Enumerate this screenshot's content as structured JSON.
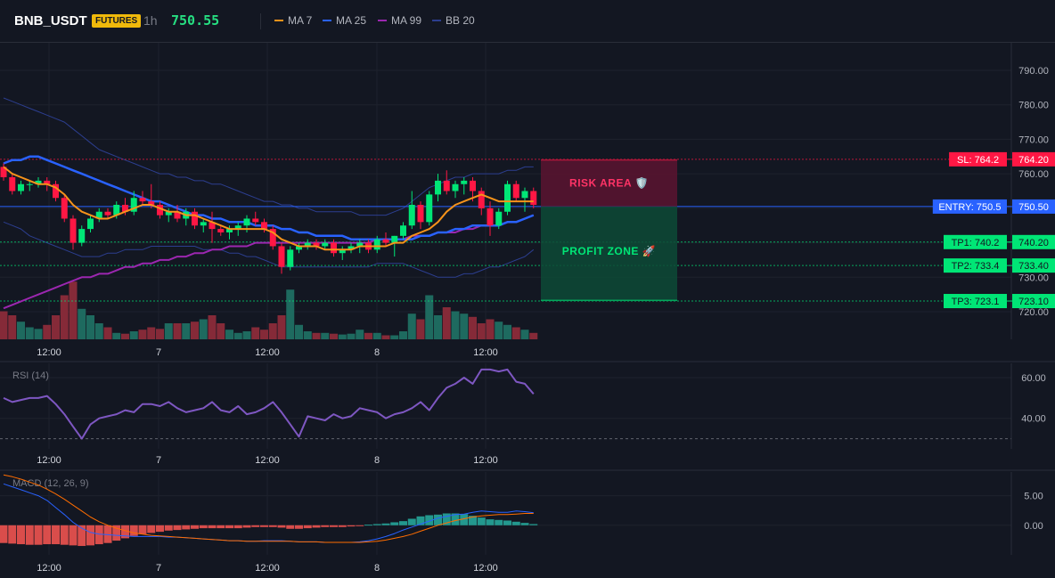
{
  "header": {
    "symbol": "BNB_USDT",
    "badge": "FUTURES",
    "timeframe": "1h",
    "price": "750.55",
    "legend": [
      {
        "label": "MA 7",
        "color": "#f7931a"
      },
      {
        "label": "MA 25",
        "color": "#2962ff"
      },
      {
        "label": "MA 99",
        "color": "#9c27b0"
      },
      {
        "label": "BB 20",
        "color": "#2c3e8f"
      }
    ]
  },
  "colors": {
    "up": "#26a69a",
    "down": "#ef5350",
    "candle_up": "#00e676",
    "candle_down": "#ff1744",
    "entry": "#2962ff",
    "sl": "#ff1744",
    "tp": "#00e676"
  },
  "x_ticks": [
    "12:00",
    "7",
    "12:00",
    "8",
    "12:00"
  ],
  "chart_data": [
    {
      "type": "candlestick",
      "ylim": [
        712,
        798
      ],
      "y_ticks": [
        "790.00",
        "780.00",
        "770.00",
        "760.00",
        "750.00",
        "740.00",
        "730.00",
        "720.00"
      ],
      "y_tick_values": [
        790,
        780,
        770,
        760,
        750,
        740,
        730,
        720
      ],
      "candles": [
        [
          762,
          763,
          758,
          759
        ],
        [
          759,
          760,
          754,
          755
        ],
        [
          755,
          758,
          754,
          757
        ],
        [
          757,
          758,
          755,
          757
        ],
        [
          757,
          759,
          756,
          758
        ],
        [
          758,
          759,
          755,
          757
        ],
        [
          757,
          758,
          752,
          753
        ],
        [
          753,
          754,
          746,
          747
        ],
        [
          747,
          748,
          738,
          740
        ],
        [
          740,
          745,
          739,
          744
        ],
        [
          744,
          748,
          743,
          747
        ],
        [
          747,
          750,
          746,
          749
        ],
        [
          749,
          750,
          747,
          748
        ],
        [
          748,
          752,
          747,
          751
        ],
        [
          751,
          753,
          748,
          749
        ],
        [
          749,
          755,
          748,
          753
        ],
        [
          753,
          755,
          751,
          752
        ],
        [
          752,
          757,
          750,
          751
        ],
        [
          751,
          752,
          747,
          748
        ],
        [
          748,
          750,
          746,
          749
        ],
        [
          749,
          751,
          746,
          747
        ],
        [
          747,
          750,
          745,
          749
        ],
        [
          749,
          750,
          744,
          745
        ],
        [
          745,
          747,
          743,
          746
        ],
        [
          746,
          749,
          740,
          744
        ],
        [
          744,
          745,
          742,
          743
        ],
        [
          743,
          745,
          741,
          744
        ],
        [
          744,
          746,
          742,
          745
        ],
        [
          745,
          748,
          743,
          747
        ],
        [
          747,
          749,
          745,
          746
        ],
        [
          746,
          747,
          743,
          744
        ],
        [
          744,
          745,
          738,
          739
        ],
        [
          739,
          740,
          731,
          733
        ],
        [
          733,
          739,
          732,
          738
        ],
        [
          738,
          740,
          737,
          739
        ],
        [
          739,
          741,
          738,
          740
        ],
        [
          740,
          741,
          738,
          739
        ],
        [
          739,
          741,
          738,
          740
        ],
        [
          740,
          741,
          736,
          737
        ],
        [
          737,
          739,
          735,
          738
        ],
        [
          738,
          740,
          737,
          739
        ],
        [
          739,
          741,
          737,
          740
        ],
        [
          740,
          741,
          737,
          738
        ],
        [
          738,
          742,
          737,
          741
        ],
        [
          741,
          743,
          739,
          740
        ],
        [
          740,
          742,
          736,
          742
        ],
        [
          742,
          746,
          741,
          745
        ],
        [
          745,
          755,
          744,
          751
        ],
        [
          751,
          752,
          744,
          746
        ],
        [
          746,
          755,
          745,
          754
        ],
        [
          754,
          760,
          752,
          758
        ],
        [
          758,
          761,
          754,
          755
        ],
        [
          755,
          758,
          753,
          757
        ],
        [
          757,
          759,
          754,
          758
        ],
        [
          758,
          759,
          752,
          755
        ],
        [
          755,
          756,
          748,
          750
        ],
        [
          750,
          752,
          742,
          745
        ],
        [
          745,
          750,
          744,
          749
        ],
        [
          749,
          758,
          748,
          757
        ],
        [
          757,
          758,
          752,
          753
        ],
        [
          753,
          756,
          749,
          755
        ],
        [
          755,
          756,
          750,
          751
        ]
      ],
      "ma7": [
        762,
        760,
        759,
        758,
        757,
        757,
        756,
        754,
        751,
        749,
        748,
        747,
        747,
        748,
        749,
        750,
        751,
        751,
        750,
        749,
        749,
        748,
        748,
        747,
        746,
        745,
        744,
        744,
        744,
        744,
        744,
        743,
        741,
        740,
        739,
        739,
        739,
        738,
        738,
        738,
        738,
        739,
        739,
        739,
        739,
        740,
        740,
        742,
        743,
        744,
        746,
        749,
        751,
        752,
        753,
        754,
        753,
        752,
        752,
        752,
        752,
        752
      ],
      "ma25": [
        763,
        764,
        764,
        765,
        765,
        764,
        763,
        762,
        761,
        760,
        759,
        758,
        757,
        756,
        755,
        754,
        753,
        752,
        752,
        751,
        750,
        749,
        748,
        748,
        747,
        747,
        746,
        746,
        746,
        745,
        745,
        745,
        744,
        744,
        743,
        743,
        742,
        742,
        742,
        742,
        741,
        741,
        741,
        741,
        741,
        741,
        741,
        741,
        742,
        742,
        743,
        743,
        744,
        744,
        745,
        745,
        745,
        745,
        746,
        746,
        747,
        748
      ],
      "ma99": [
        721,
        722,
        723,
        724,
        725,
        726,
        727,
        728,
        729,
        730,
        730,
        731,
        731,
        732,
        733,
        733,
        734,
        734,
        735,
        735,
        736,
        736,
        737,
        737,
        738,
        738,
        739,
        739,
        739,
        740,
        740,
        740,
        740,
        740,
        740,
        740,
        740,
        740,
        740,
        740,
        740,
        740,
        740,
        741,
        741,
        741,
        741,
        742,
        742,
        742,
        743,
        743,
        743,
        744,
        744,
        745,
        745,
        745,
        746,
        746,
        747,
        748
      ],
      "bb_upper": [
        782,
        781,
        780,
        779,
        778,
        777,
        776,
        775,
        773,
        771,
        769,
        767,
        766,
        765,
        764,
        763,
        762,
        761,
        760,
        760,
        759,
        759,
        758,
        758,
        757,
        757,
        756,
        755,
        754,
        753,
        752,
        752,
        751,
        751,
        750,
        750,
        749,
        749,
        749,
        749,
        749,
        748,
        748,
        748,
        748,
        749,
        750,
        752,
        754,
        756,
        757,
        758,
        759,
        759,
        760,
        760,
        760,
        760,
        761,
        761,
        762,
        762
      ],
      "bb_lower": [
        746,
        745,
        744,
        742,
        741,
        740,
        739,
        738,
        737,
        736,
        736,
        736,
        737,
        737,
        738,
        738,
        738,
        739,
        739,
        739,
        739,
        739,
        739,
        738,
        738,
        738,
        737,
        737,
        736,
        736,
        735,
        734,
        733,
        733,
        733,
        733,
        733,
        733,
        733,
        733,
        733,
        733,
        733,
        734,
        734,
        734,
        734,
        733,
        732,
        731,
        730,
        730,
        730,
        731,
        731,
        732,
        733,
        733,
        734,
        735,
        736,
        738
      ],
      "volume": [
        0.35,
        0.3,
        0.22,
        0.15,
        0.13,
        0.18,
        0.3,
        0.55,
        0.72,
        0.38,
        0.3,
        0.2,
        0.15,
        0.08,
        0.07,
        0.1,
        0.12,
        0.15,
        0.13,
        0.2,
        0.2,
        0.2,
        0.22,
        0.25,
        0.3,
        0.2,
        0.12,
        0.08,
        0.1,
        0.15,
        0.12,
        0.2,
        0.3,
        0.62,
        0.18,
        0.1,
        0.08,
        0.08,
        0.07,
        0.06,
        0.07,
        0.12,
        0.08,
        0.08,
        0.05,
        0.05,
        0.1,
        0.32,
        0.25,
        0.55,
        0.3,
        0.4,
        0.35,
        0.32,
        0.28,
        0.2,
        0.25,
        0.22,
        0.18,
        0.15,
        0.12,
        0.08
      ],
      "levels": [
        {
          "label": "SL: 764.2",
          "value_text": "764.20",
          "value": 764.2,
          "kind": "sl"
        },
        {
          "label": "ENTRY: 750.5",
          "value_text": "750.50",
          "value": 750.5,
          "kind": "entry"
        },
        {
          "label": "TP1: 740.2",
          "value_text": "740.20",
          "value": 740.2,
          "kind": "tp"
        },
        {
          "label": "TP2: 733.4",
          "value_text": "733.40",
          "value": 733.4,
          "kind": "tp"
        },
        {
          "label": "TP3: 723.1",
          "value_text": "723.10",
          "value": 723.1,
          "kind": "tp"
        }
      ],
      "zones": {
        "risk_label": "RISK AREA 🛡️",
        "profit_label": "PROFIT ZONE 🚀"
      }
    },
    {
      "type": "line",
      "title": "RSI (14)",
      "ylim": [
        25,
        67
      ],
      "y_ticks": [
        "60.00",
        "40.00"
      ],
      "y_tick_values": [
        60,
        40
      ],
      "dashed_level": 30,
      "values": [
        50,
        49,
        50,
        50,
        51,
        52,
        50,
        46,
        40,
        30,
        37,
        40,
        41,
        42,
        44,
        43,
        47,
        46,
        47,
        48,
        46,
        50,
        51,
        49,
        45,
        43,
        46,
        46,
        48,
        47,
        43,
        41,
        45,
        42,
        44,
        45,
        40,
        48,
        49,
        44,
        42,
        45,
        49,
        47,
        42,
        44,
        45,
        44,
        43,
        42,
        41,
        43,
        44,
        46,
        42,
        45,
        47,
        51,
        55,
        52,
        54,
        52
      ],
      "rsi_overwrite": [
        50,
        48,
        49,
        50,
        50,
        51,
        47,
        42,
        36,
        30,
        37,
        40,
        41,
        42,
        44,
        43,
        47,
        47,
        46,
        48,
        45,
        43,
        44,
        45,
        48,
        44,
        43,
        46,
        42,
        43,
        45,
        48,
        43,
        37,
        31,
        41,
        40,
        39,
        42,
        40,
        41,
        45,
        44,
        43,
        40,
        42,
        43,
        45,
        48,
        44,
        50,
        55,
        57,
        60,
        57,
        64,
        64,
        63,
        64,
        58,
        57,
        52
      ]
    },
    {
      "type": "bar",
      "title": "MACD (12, 26, 9)",
      "ylim": [
        -5,
        9
      ],
      "y_ticks": [
        "5.00",
        "0.00"
      ],
      "y_tick_values": [
        5,
        0
      ],
      "histogram": [
        -3,
        -3.1,
        -3.2,
        -3.3,
        -3.3,
        -3.2,
        -3.2,
        -3.3,
        -3.4,
        -3.5,
        -3.4,
        -3.2,
        -3.0,
        -2.6,
        -2.2,
        -1.8,
        -1.5,
        -1.3,
        -1.1,
        -0.9,
        -0.8,
        -0.7,
        -0.6,
        -0.5,
        -0.5,
        -0.5,
        -0.5,
        -0.5,
        -0.4,
        -0.3,
        -0.3,
        -0.3,
        -0.4,
        -0.6,
        -0.6,
        -0.5,
        -0.4,
        -0.3,
        -0.3,
        -0.3,
        -0.2,
        -0.1,
        0.1,
        0.2,
        0.3,
        0.5,
        0.7,
        1.1,
        1.5,
        1.7,
        1.8,
        2.0,
        2.0,
        1.9,
        1.6,
        1.3,
        1.0,
        0.9,
        0.8,
        0.6,
        0.4,
        0.2
      ],
      "macd": [
        7.0,
        6.5,
        6.0,
        5.5,
        5.0,
        4.2,
        3.0,
        1.8,
        0.5,
        -0.5,
        -1.2,
        -1.5,
        -1.6,
        -1.7,
        -1.8,
        -1.9,
        -1.9,
        -1.9,
        -1.9,
        -2.0,
        -2.0,
        -2.1,
        -2.2,
        -2.3,
        -2.4,
        -2.5,
        -2.6,
        -2.6,
        -2.7,
        -2.7,
        -2.6,
        -2.6,
        -2.6,
        -2.7,
        -2.8,
        -2.8,
        -2.8,
        -2.9,
        -2.9,
        -2.9,
        -2.9,
        -2.8,
        -2.6,
        -2.3,
        -1.9,
        -1.4,
        -0.8,
        -0.3,
        0.2,
        0.7,
        1.2,
        1.5,
        1.8,
        1.9,
        2.2,
        2.4,
        2.3,
        2.2,
        2.2,
        2.4,
        2.3,
        2.1
      ],
      "signal": [
        8.5,
        8.2,
        7.8,
        7.3,
        6.8,
        6.1,
        5.3,
        4.4,
        3.4,
        2.4,
        1.4,
        0.6,
        0.0,
        -0.5,
        -0.9,
        -1.3,
        -1.5,
        -1.7,
        -1.8,
        -1.9,
        -2.0,
        -2.1,
        -2.2,
        -2.3,
        -2.4,
        -2.5,
        -2.6,
        -2.6,
        -2.7,
        -2.7,
        -2.7,
        -2.7,
        -2.7,
        -2.7,
        -2.8,
        -2.8,
        -2.8,
        -2.9,
        -2.9,
        -2.9,
        -2.9,
        -2.9,
        -2.8,
        -2.7,
        -2.5,
        -2.2,
        -1.9,
        -1.5,
        -1.0,
        -0.5,
        0.0,
        0.4,
        0.8,
        1.1,
        1.4,
        1.6,
        1.7,
        1.8,
        1.8,
        1.9,
        2.0,
        2.0
      ]
    }
  ]
}
